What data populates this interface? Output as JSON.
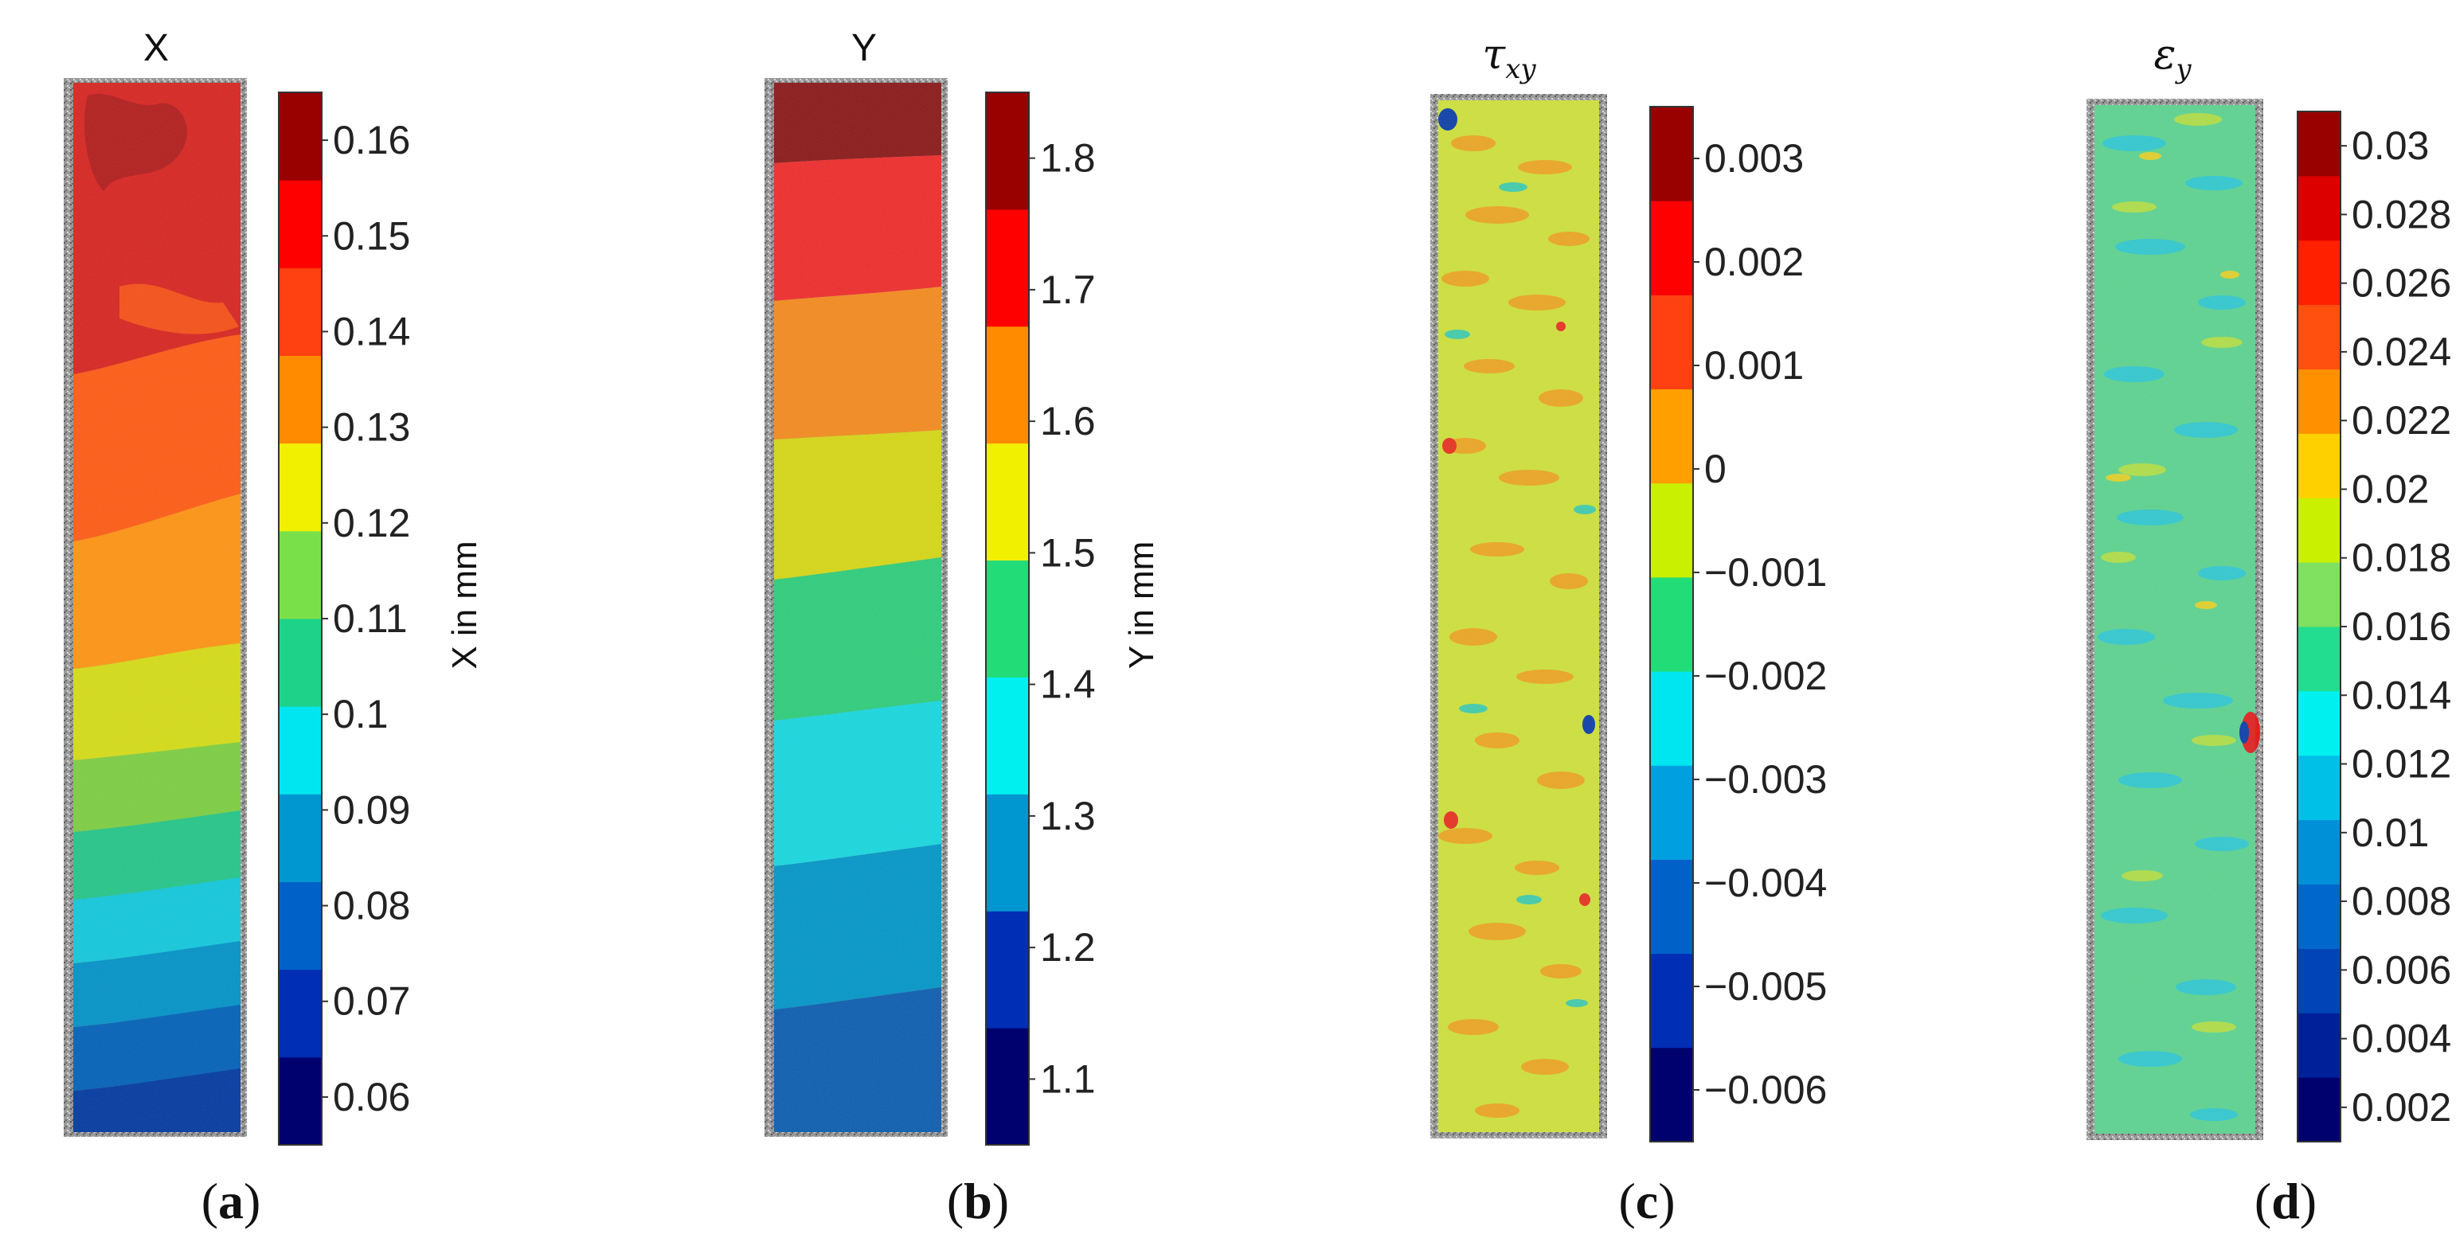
{
  "chart_data": [
    {
      "type": "heatmap",
      "title": "X",
      "colorbar_label": "X in mm",
      "colorbar_ticks": [
        "0.16",
        "0.15",
        "0.14",
        "0.13",
        "0.12",
        "0.11",
        "0.1",
        "0.09",
        "0.08",
        "0.07",
        "0.06"
      ],
      "colorbar_range": [
        0.055,
        0.165
      ],
      "colors": [
        "#00006e",
        "#002eb5",
        "#0062c8",
        "#0096d0",
        "#00e6f0",
        "#1ed28a",
        "#7ae04a",
        "#f0f000",
        "#ff8c00",
        "#ff4010",
        "#ff0000",
        "#990000"
      ],
      "subfigure_label": "a"
    },
    {
      "type": "heatmap",
      "title": "Y",
      "colorbar_label": "Y in mm",
      "colorbar_ticks": [
        "1.8",
        "1.7",
        "1.6",
        "1.5",
        "1.4",
        "1.3",
        "1.2",
        "1.1"
      ],
      "colorbar_range": [
        1.05,
        1.85
      ],
      "colors": [
        "#00006e",
        "#002eb5",
        "#0096d0",
        "#00f0f0",
        "#22dc78",
        "#f0f000",
        "#ff8c00",
        "#ff0000",
        "#990000"
      ],
      "subfigure_label": "b"
    },
    {
      "type": "heatmap",
      "title_symbol": "τ",
      "title_subscript": "xy",
      "colorbar_ticks": [
        "0.003",
        "0.002",
        "0.001",
        "0",
        "−0.001",
        "−0.002",
        "−0.003",
        "−0.004",
        "−0.005",
        "−0.006"
      ],
      "colorbar_range": [
        -0.0065,
        0.0035
      ],
      "colors": [
        "#00006e",
        "#002eb5",
        "#0062c8",
        "#00a0e0",
        "#00e6f0",
        "#22dc78",
        "#c8f000",
        "#ffa000",
        "#ff4010",
        "#ff0000",
        "#990000"
      ],
      "subfigure_label": "c"
    },
    {
      "type": "heatmap",
      "title_symbol": "ε",
      "title_subscript": "y",
      "colorbar_ticks": [
        "0.03",
        "0.028",
        "0.026",
        "0.024",
        "0.022",
        "0.02",
        "0.018",
        "0.016",
        "0.014",
        "0.012",
        "0.01",
        "0.008",
        "0.006",
        "0.004",
        "0.002"
      ],
      "colorbar_range": [
        0.001,
        0.031
      ],
      "colors": [
        "#00006e",
        "#00209a",
        "#0044b8",
        "#0068cc",
        "#0090d8",
        "#00c0e8",
        "#00f0f0",
        "#22dc90",
        "#80e060",
        "#c8f000",
        "#ffd000",
        "#ff9000",
        "#ff5010",
        "#ff2000",
        "#dd0000",
        "#990000"
      ],
      "subfigure_label": "d"
    }
  ]
}
